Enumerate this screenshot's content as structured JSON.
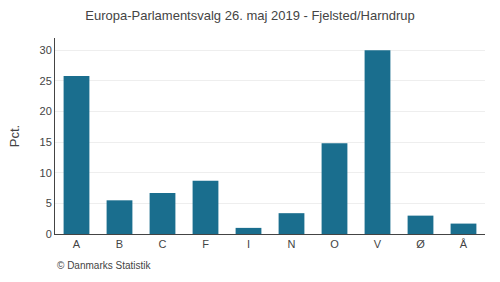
{
  "chart_data": {
    "type": "bar",
    "title": "Europa-Parlamentsvalg 26. maj 2019 - Fjelsted/Harndrup",
    "categories": [
      "A",
      "B",
      "C",
      "F",
      "I",
      "N",
      "O",
      "V",
      "Ø",
      "Å"
    ],
    "values": [
      25.8,
      5.5,
      6.7,
      8.7,
      1.0,
      3.4,
      14.8,
      30.0,
      3.0,
      1.7
    ],
    "color": "#1a6e8e",
    "ylim": [
      0,
      32
    ],
    "yticks": [
      0,
      5,
      10,
      15,
      20,
      25,
      30
    ],
    "ylabel": "Pct.",
    "annotations": [
      "© Danmarks Statistik"
    ],
    "grid": true
  }
}
